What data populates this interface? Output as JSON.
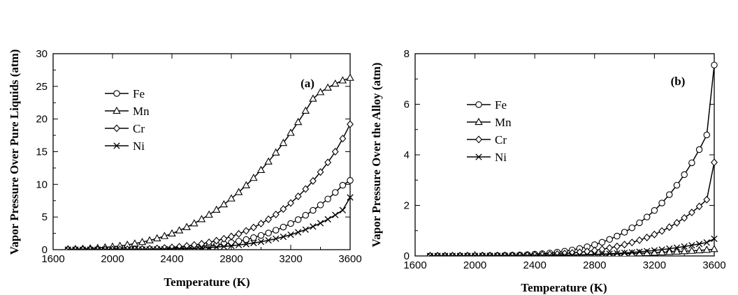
{
  "chart_data": [
    {
      "type": "line",
      "panel_label": "(a)",
      "xlabel": "Temperature (K)",
      "ylabel": "Vapor Pressure Over Pure Liquids (atm)",
      "xlim": [
        1600,
        3600
      ],
      "ylim": [
        0,
        30
      ],
      "xticks": [
        1600,
        2000,
        2400,
        2800,
        3200,
        3600
      ],
      "yticks": [
        0,
        5,
        10,
        15,
        20,
        25,
        30
      ],
      "legend_position": "upper-left",
      "x": [
        1700,
        1750,
        1800,
        1850,
        1900,
        1950,
        2000,
        2050,
        2100,
        2150,
        2200,
        2250,
        2300,
        2350,
        2400,
        2450,
        2500,
        2550,
        2600,
        2650,
        2700,
        2750,
        2800,
        2850,
        2900,
        2950,
        3000,
        3050,
        3100,
        3150,
        3200,
        3250,
        3300,
        3350,
        3400,
        3450,
        3500,
        3550,
        3600
      ],
      "series": [
        {
          "name": "Fe",
          "marker": "circle",
          "values": [
            0.0,
            0.001,
            0.002,
            0.003,
            0.005,
            0.008,
            0.012,
            0.018,
            0.027,
            0.038,
            0.054,
            0.074,
            0.1,
            0.13,
            0.17,
            0.23,
            0.3,
            0.38,
            0.47,
            0.59,
            0.73,
            0.89,
            1.08,
            1.3,
            1.55,
            1.84,
            2.18,
            2.55,
            2.98,
            3.46,
            4.0,
            4.6,
            5.27,
            6.02,
            6.84,
            7.76,
            8.76,
            9.86,
            10.6
          ]
        },
        {
          "name": "Mn",
          "marker": "triangle",
          "values": [
            0.06,
            0.09,
            0.13,
            0.19,
            0.25,
            0.34,
            0.45,
            0.57,
            0.74,
            0.93,
            1.16,
            1.42,
            1.73,
            2.08,
            2.47,
            2.94,
            3.45,
            4.02,
            4.66,
            5.35,
            6.1,
            6.93,
            7.83,
            8.8,
            9.85,
            10.98,
            12.19,
            13.48,
            14.86,
            16.33,
            17.88,
            19.53,
            21.26,
            23.1,
            24.1,
            24.8,
            25.4,
            25.9,
            26.3
          ]
        },
        {
          "name": "Cr",
          "marker": "diamond",
          "values": [
            0.0,
            0.001,
            0.003,
            0.005,
            0.009,
            0.014,
            0.022,
            0.033,
            0.049,
            0.071,
            0.1,
            0.14,
            0.19,
            0.26,
            0.34,
            0.44,
            0.57,
            0.72,
            0.9,
            1.12,
            1.38,
            1.67,
            2.02,
            2.42,
            2.88,
            3.4,
            3.99,
            4.65,
            5.39,
            6.22,
            7.14,
            8.16,
            9.29,
            10.52,
            11.88,
            13.36,
            15.0,
            17.0,
            19.2
          ]
        },
        {
          "name": "Ni",
          "marker": "cross",
          "values": [
            0.0,
            0.0,
            0.001,
            0.001,
            0.002,
            0.004,
            0.006,
            0.009,
            0.013,
            0.019,
            0.027,
            0.038,
            0.052,
            0.07,
            0.093,
            0.12,
            0.16,
            0.2,
            0.25,
            0.32,
            0.39,
            0.48,
            0.59,
            0.71,
            0.85,
            1.02,
            1.21,
            1.43,
            1.68,
            1.97,
            2.29,
            2.66,
            3.07,
            3.54,
            4.06,
            4.65,
            5.31,
            6.05,
            8.0
          ]
        }
      ]
    },
    {
      "type": "line",
      "panel_label": "(b)",
      "xlabel": "Temperature (K)",
      "ylabel": "Vapor Pressure Over the Alloy (atm)",
      "xlim": [
        1600,
        3600
      ],
      "ylim": [
        0,
        8
      ],
      "xticks": [
        1600,
        2000,
        2400,
        2800,
        3200,
        3600
      ],
      "yticks": [
        0,
        2,
        4,
        6,
        8
      ],
      "legend_position": "upper-left",
      "x": [
        1700,
        1750,
        1800,
        1850,
        1900,
        1950,
        2000,
        2050,
        2100,
        2150,
        2200,
        2250,
        2300,
        2350,
        2400,
        2450,
        2500,
        2550,
        2600,
        2650,
        2700,
        2750,
        2800,
        2850,
        2900,
        2950,
        3000,
        3050,
        3100,
        3150,
        3200,
        3250,
        3300,
        3350,
        3400,
        3450,
        3500,
        3550,
        3600
      ],
      "series": [
        {
          "name": "Fe",
          "marker": "circle",
          "values": [
            0.0,
            0.0,
            0.001,
            0.001,
            0.002,
            0.003,
            0.005,
            0.007,
            0.01,
            0.014,
            0.02,
            0.028,
            0.038,
            0.051,
            0.068,
            0.089,
            0.115,
            0.148,
            0.187,
            0.236,
            0.294,
            0.363,
            0.445,
            0.541,
            0.654,
            0.785,
            0.937,
            1.112,
            1.312,
            1.54,
            1.8,
            2.094,
            2.425,
            2.798,
            3.216,
            3.684,
            4.206,
            4.786,
            7.55
          ]
        },
        {
          "name": "Mn",
          "marker": "triangle",
          "values": [
            0.001,
            0.001,
            0.001,
            0.002,
            0.002,
            0.003,
            0.004,
            0.005,
            0.006,
            0.007,
            0.009,
            0.011,
            0.013,
            0.015,
            0.018,
            0.021,
            0.024,
            0.028,
            0.032,
            0.037,
            0.042,
            0.048,
            0.054,
            0.061,
            0.068,
            0.076,
            0.085,
            0.095,
            0.105,
            0.116,
            0.128,
            0.141,
            0.155,
            0.17,
            0.186,
            0.203,
            0.221,
            0.24,
            0.27
          ]
        },
        {
          "name": "Cr",
          "marker": "diamond",
          "values": [
            0.0,
            0.0,
            0.0,
            0.001,
            0.001,
            0.002,
            0.003,
            0.004,
            0.006,
            0.008,
            0.011,
            0.015,
            0.02,
            0.027,
            0.035,
            0.046,
            0.059,
            0.075,
            0.095,
            0.118,
            0.146,
            0.179,
            0.218,
            0.263,
            0.316,
            0.378,
            0.449,
            0.531,
            0.624,
            0.73,
            0.85,
            0.986,
            1.139,
            1.311,
            1.504,
            1.72,
            1.96,
            2.227,
            3.7
          ]
        },
        {
          "name": "Ni",
          "marker": "cross",
          "values": [
            0.0,
            0.0,
            0.0,
            0.0,
            0.0,
            0.001,
            0.001,
            0.001,
            0.002,
            0.002,
            0.003,
            0.004,
            0.006,
            0.008,
            0.01,
            0.013,
            0.017,
            0.021,
            0.027,
            0.033,
            0.041,
            0.05,
            0.06,
            0.072,
            0.086,
            0.102,
            0.12,
            0.141,
            0.164,
            0.19,
            0.219,
            0.252,
            0.288,
            0.328,
            0.372,
            0.421,
            0.474,
            0.532,
            0.68
          ]
        }
      ]
    }
  ]
}
